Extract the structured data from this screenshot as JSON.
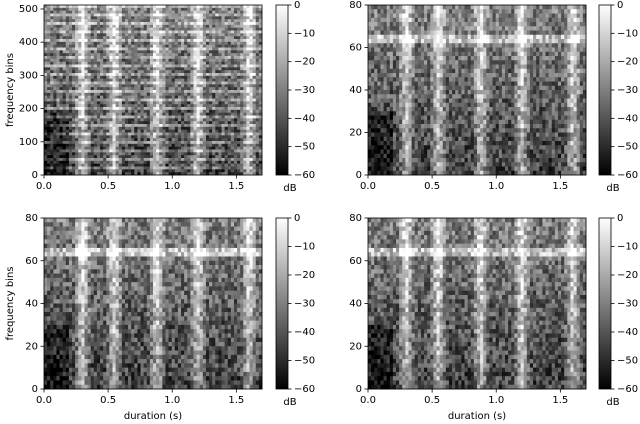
{
  "chart_data": [
    {
      "type": "spectrogram",
      "colormap": "gray",
      "ylabel": "frequency bins",
      "xlim": [
        0,
        1.7
      ],
      "ylim": [
        0,
        512
      ],
      "xticks": [
        {
          "value": 0,
          "label": "0.0"
        },
        0.5,
        {
          "value": 1,
          "label": "1.0"
        },
        1.5
      ],
      "yticks": [
        0,
        100,
        200,
        300,
        400,
        500
      ],
      "colorbar": {
        "label": "dB",
        "lim": [
          -60,
          0
        ],
        "ticks": [
          0,
          {
            "value": -10,
            "label": "−10"
          },
          {
            "value": -20,
            "label": "−20"
          },
          {
            "value": -30,
            "label": "−30"
          },
          {
            "value": -40,
            "label": "−40"
          },
          {
            "value": -50,
            "label": "−50"
          },
          {
            "value": -60,
            "label": "−60"
          }
        ]
      }
    },
    {
      "type": "spectrogram",
      "colormap": "gray",
      "xlim": [
        0,
        1.7
      ],
      "ylim": [
        0,
        80
      ],
      "xticks": [
        {
          "value": 0,
          "label": "0.0"
        },
        0.5,
        {
          "value": 1,
          "label": "1.0"
        },
        1.5
      ],
      "yticks": [
        0,
        20,
        40,
        60,
        80
      ],
      "colorbar": {
        "label": "dB",
        "lim": [
          -60,
          0
        ],
        "ticks": [
          0,
          {
            "value": -10,
            "label": "−10"
          },
          {
            "value": -20,
            "label": "−20"
          },
          {
            "value": -30,
            "label": "−30"
          },
          {
            "value": -40,
            "label": "−40"
          },
          {
            "value": -50,
            "label": "−50"
          },
          {
            "value": -60,
            "label": "−60"
          }
        ]
      }
    },
    {
      "type": "spectrogram",
      "colormap": "gray",
      "xlabel": "duration (s)",
      "ylabel": "frequency bins",
      "xlim": [
        0,
        1.7
      ],
      "ylim": [
        0,
        80
      ],
      "xticks": [
        {
          "value": 0,
          "label": "0.0"
        },
        0.5,
        {
          "value": 1,
          "label": "1.0"
        },
        1.5
      ],
      "yticks": [
        0,
        20,
        40,
        60,
        80
      ],
      "colorbar": {
        "label": "dB",
        "lim": [
          -60,
          0
        ],
        "ticks": [
          0,
          {
            "value": -10,
            "label": "−10"
          },
          {
            "value": -20,
            "label": "−20"
          },
          {
            "value": -30,
            "label": "−30"
          },
          {
            "value": -40,
            "label": "−40"
          },
          {
            "value": -50,
            "label": "−50"
          },
          {
            "value": -60,
            "label": "−60"
          }
        ]
      }
    },
    {
      "type": "spectrogram",
      "colormap": "gray",
      "xlabel": "duration (s)",
      "xlim": [
        0,
        1.7
      ],
      "ylim": [
        0,
        80
      ],
      "xticks": [
        {
          "value": 0,
          "label": "0.0"
        },
        0.5,
        {
          "value": 1,
          "label": "1.0"
        },
        1.5
      ],
      "yticks": [
        0,
        20,
        40,
        60,
        80
      ],
      "colorbar": {
        "label": "dB",
        "lim": [
          -60,
          0
        ],
        "ticks": [
          0,
          {
            "value": -10,
            "label": "−10"
          },
          {
            "value": -20,
            "label": "−20"
          },
          {
            "value": -30,
            "label": "−30"
          },
          {
            "value": -40,
            "label": "−40"
          },
          {
            "value": -50,
            "label": "−50"
          },
          {
            "value": -60,
            "label": "−60"
          }
        ]
      }
    }
  ]
}
